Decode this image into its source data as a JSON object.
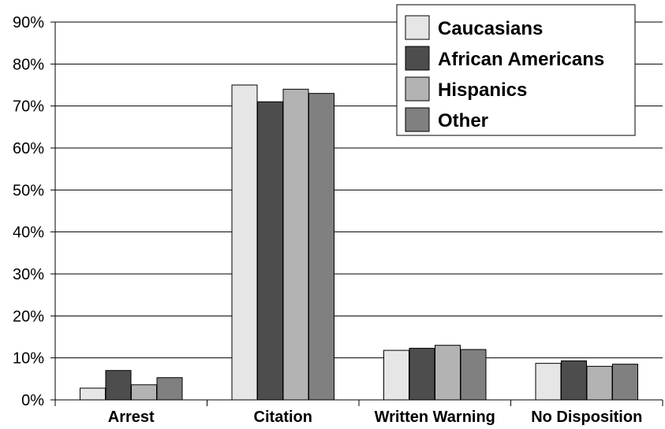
{
  "chart_data": {
    "type": "bar",
    "title": "",
    "xlabel": "",
    "ylabel": "",
    "categories": [
      "Arrest",
      "Citation",
      "Written Warning",
      "No Disposition"
    ],
    "series": [
      {
        "name": "Caucasians",
        "values": [
          2.8,
          75.0,
          11.8,
          8.7
        ],
        "color": "#e6e6e6"
      },
      {
        "name": "African Americans",
        "values": [
          7.0,
          71.0,
          12.3,
          9.3
        ],
        "color": "#4d4d4d"
      },
      {
        "name": "Hispanics",
        "values": [
          3.6,
          74.0,
          13.0,
          8.0
        ],
        "color": "#b3b3b3"
      },
      {
        "name": "Other",
        "values": [
          5.3,
          73.0,
          12.0,
          8.5
        ],
        "color": "#808080"
      }
    ],
    "ylim": [
      0,
      90
    ],
    "yticks": [
      0,
      10,
      20,
      30,
      40,
      50,
      60,
      70,
      80,
      90
    ],
    "ytick_suffix": "%",
    "grid": true,
    "legend": "top-right"
  }
}
